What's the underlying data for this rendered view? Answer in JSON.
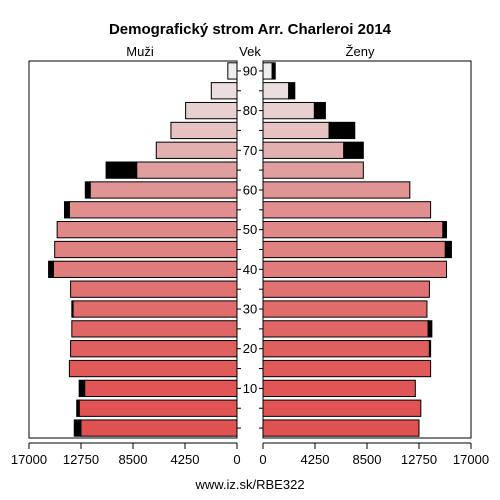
{
  "chart_data": {
    "type": "bar",
    "orientation": "horizontal-pyramid",
    "title": "Demografický strom Arr. Charleroi 2014",
    "left_label": "Muži",
    "center_label": "Vek",
    "right_label": "Ženy",
    "footer": "www.iz.sk/RBE322",
    "age_groups": [
      "0-4",
      "5-9",
      "10-14",
      "15-19",
      "20-24",
      "25-29",
      "30-34",
      "35-39",
      "40-44",
      "45-49",
      "50-54",
      "55-59",
      "60-64",
      "65-69",
      "70-74",
      "75-79",
      "80-84",
      "85-89",
      "90+"
    ],
    "age_tick_labels": [
      {
        "group_index": 2,
        "label": "10"
      },
      {
        "group_index": 4,
        "label": "20"
      },
      {
        "group_index": 6,
        "label": "30"
      },
      {
        "group_index": 8,
        "label": "40"
      },
      {
        "group_index": 10,
        "label": "50"
      },
      {
        "group_index": 12,
        "label": "60"
      },
      {
        "group_index": 14,
        "label": "70"
      },
      {
        "group_index": 16,
        "label": "80"
      },
      {
        "group_index": 18,
        "label": "90"
      }
    ],
    "x_ticks": [
      {
        "value": 0,
        "label": "0"
      },
      {
        "value": 4250,
        "label": "4250"
      },
      {
        "value": 8500,
        "label": "8500"
      },
      {
        "value": 12750,
        "label": "12750"
      },
      {
        "value": 17000,
        "label": "17000"
      }
    ],
    "xlim": [
      0,
      17000
    ],
    "colors": {
      "surplus": "#000000",
      "men": [
        "#e05252",
        "#e05454",
        "#e05656",
        "#e05a5a",
        "#e06060",
        "#e06666",
        "#e06c6c",
        "#e07272",
        "#e07c7c",
        "#e08282",
        "#e08888",
        "#e08e8e",
        "#e09494",
        "#e09e9e",
        "#e3b0b0",
        "#e6c2c2",
        "#e8d0d0",
        "#ebdede",
        "#eeeeee"
      ],
      "women": [
        "#e05252",
        "#e05454",
        "#e05656",
        "#e05a5a",
        "#e06060",
        "#e06666",
        "#e06c6c",
        "#e07272",
        "#e07c7c",
        "#e08282",
        "#e08888",
        "#e08e8e",
        "#e09494",
        "#e09e9e",
        "#e3b0b0",
        "#e6c2c2",
        "#e8d0d0",
        "#ebdede",
        "#eeeeee"
      ]
    },
    "series": [
      {
        "name": "Muži",
        "values": [
          13300,
          13100,
          12900,
          13700,
          13600,
          13500,
          13500,
          13600,
          15400,
          14900,
          14700,
          14100,
          12400,
          10700,
          6600,
          5400,
          4200,
          2100,
          750
        ]
      },
      {
        "name": "Ženy",
        "values": [
          12750,
          12900,
          12450,
          13700,
          13700,
          13800,
          13400,
          13600,
          15000,
          15400,
          15000,
          13700,
          12000,
          8200,
          8200,
          7500,
          5100,
          2600,
          1000
        ]
      }
    ]
  }
}
